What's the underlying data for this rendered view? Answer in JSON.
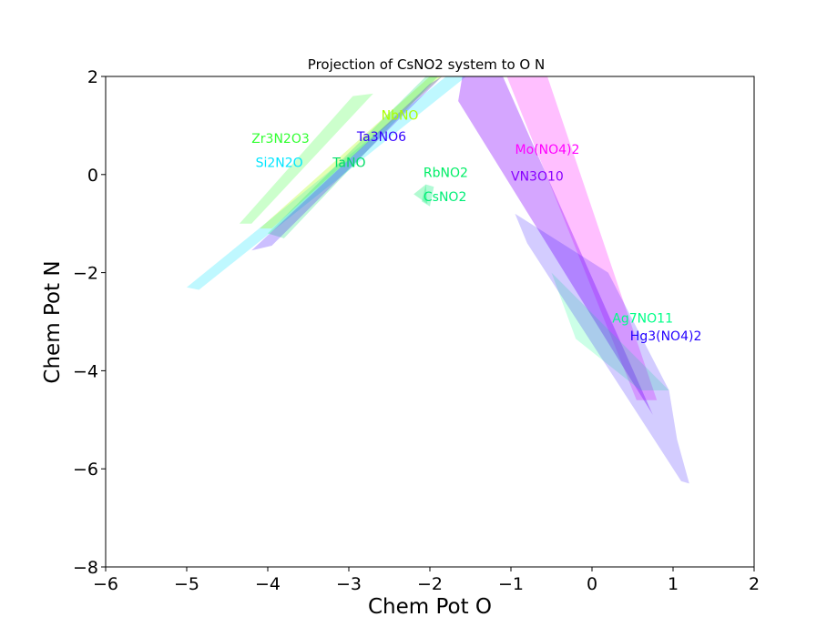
{
  "chart_data": {
    "type": "area",
    "title": "Projection of CsNO2 system to O N",
    "xlabel": "Chem Pot O",
    "ylabel": "Chem Pot N",
    "xlim": [
      -6,
      2
    ],
    "ylim": [
      -8,
      2
    ],
    "xticks": [
      {
        "value": -6,
        "label": "−6"
      },
      {
        "value": -5,
        "label": "−5"
      },
      {
        "value": -4,
        "label": "−4"
      },
      {
        "value": -3,
        "label": "−3"
      },
      {
        "value": -2,
        "label": "−2"
      },
      {
        "value": -1,
        "label": "−1"
      },
      {
        "value": 0,
        "label": "0"
      },
      {
        "value": 1,
        "label": "1"
      },
      {
        "value": 2,
        "label": "2"
      }
    ],
    "yticks": [
      {
        "value": -8,
        "label": "−8"
      },
      {
        "value": -6,
        "label": "−6"
      },
      {
        "value": -4,
        "label": "−4"
      },
      {
        "value": -2,
        "label": "−2"
      },
      {
        "value": 0,
        "label": "0"
      },
      {
        "value": 2,
        "label": "2"
      }
    ],
    "grid": false,
    "series": [
      {
        "name": "Zr3N2O3",
        "color": "#33ff33",
        "alpha": 0.25,
        "label_pos": [
          -4.2,
          0.65
        ],
        "polygon": [
          [
            -4.35,
            -1.0
          ],
          [
            -2.95,
            1.6
          ],
          [
            -2.7,
            1.65
          ],
          [
            -4.2,
            -1.0
          ]
        ]
      },
      {
        "name": "Si2N2O",
        "color": "#00e5ff",
        "alpha": 0.25,
        "label_pos": [
          -4.15,
          0.15
        ],
        "polygon": [
          [
            -5.0,
            -2.3
          ],
          [
            -1.8,
            2.0
          ],
          [
            -1.55,
            2.0
          ],
          [
            -4.85,
            -2.35
          ]
        ]
      },
      {
        "name": "NbNO",
        "color": "#aaff00",
        "alpha": 0.3,
        "label_pos": [
          -2.6,
          1.12
        ],
        "polygon": [
          [
            -4.1,
            -1.1
          ],
          [
            -2.0,
            2.0
          ],
          [
            -1.85,
            2.0
          ],
          [
            -3.95,
            -1.1
          ]
        ]
      },
      {
        "name": "TaNO",
        "color": "#00dd66",
        "alpha": 0.25,
        "label_pos": [
          -3.2,
          0.15
        ],
        "polygon": [
          [
            -4.0,
            -1.2
          ],
          [
            -2.05,
            2.0
          ],
          [
            -1.9,
            2.0
          ],
          [
            -3.8,
            -1.3
          ]
        ]
      },
      {
        "name": "Ta3NO6",
        "color": "#3300ff",
        "alpha": 0.25,
        "label_pos": [
          -2.9,
          0.68
        ],
        "polygon": [
          [
            -4.2,
            -1.55
          ],
          [
            -2.0,
            1.85
          ],
          [
            -1.85,
            2.0
          ],
          [
            -3.95,
            -1.45
          ]
        ]
      },
      {
        "name": "RbNO2",
        "color": "#00ee66",
        "alpha": 0.3,
        "label_pos": [
          -2.08,
          -0.05
        ],
        "polygon": [
          [
            -2.2,
            -0.4
          ],
          [
            -2.05,
            -0.2
          ],
          [
            -2.03,
            -0.6
          ]
        ]
      },
      {
        "name": "CsNO2",
        "color": "#00ee77",
        "alpha": 0.3,
        "label_pos": [
          -2.08,
          -0.54
        ],
        "polygon": [
          [
            -2.05,
            -0.2
          ],
          [
            -1.95,
            -0.25
          ],
          [
            -2.0,
            -0.65
          ],
          [
            -2.1,
            -0.55
          ]
        ]
      },
      {
        "name": "Mo(NO4)2",
        "color": "#ff00ff",
        "alpha": 0.25,
        "label_pos": [
          -0.95,
          0.42
        ],
        "polygon": [
          [
            -1.05,
            2.0
          ],
          [
            -0.55,
            2.0
          ],
          [
            0.8,
            -4.6
          ],
          [
            0.55,
            -4.6
          ]
        ]
      },
      {
        "name": "VN3O10",
        "color": "#8800ff",
        "alpha": 0.35,
        "label_pos": [
          -1.0,
          -0.12
        ],
        "polygon": [
          [
            -1.6,
            2.0
          ],
          [
            -1.1,
            2.0
          ],
          [
            0.75,
            -4.9
          ],
          [
            -1.65,
            1.5
          ]
        ]
      },
      {
        "name": "Ag7NO11",
        "color": "#00ff88",
        "alpha": 0.2,
        "label_pos": [
          0.25,
          -3.02
        ],
        "polygon": [
          [
            -0.5,
            -2.0
          ],
          [
            0.95,
            -4.4
          ],
          [
            0.6,
            -4.4
          ],
          [
            -0.2,
            -3.35
          ]
        ]
      },
      {
        "name": "Hg3(NO4)2",
        "color": "#2200ff",
        "alpha": 0.2,
        "label_pos": [
          0.47,
          -3.38
        ],
        "polygon": [
          [
            -0.95,
            -0.8
          ],
          [
            0.2,
            -2.0
          ],
          [
            0.95,
            -4.4
          ],
          [
            1.05,
            -5.4
          ],
          [
            1.2,
            -6.3
          ],
          [
            1.1,
            -6.25
          ],
          [
            -0.8,
            -1.4
          ]
        ]
      }
    ]
  }
}
